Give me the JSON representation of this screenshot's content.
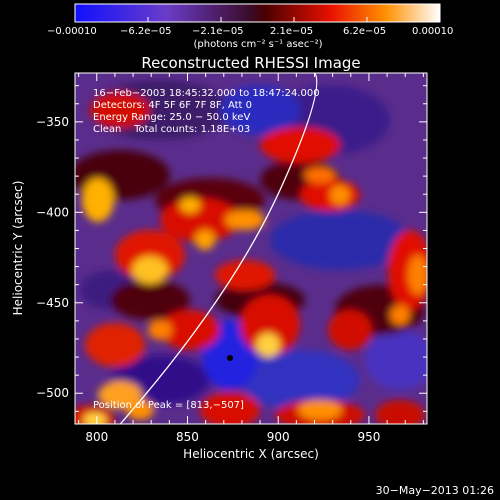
{
  "colorbar": {
    "tick_labels": [
      "−0.00010",
      "−6.2e−05",
      "−2.1e−05",
      "2.1e−05",
      "6.2e−05",
      "0.00010"
    ],
    "units_label": "(photons cm⁻² s⁻¹ asec⁻²)"
  },
  "image": {
    "title": "Reconstructed RHESSI Image",
    "info_lines": [
      "16−Feb−2003 18:45:32.000 to 18:47:24.000",
      "Detectors: 4F 5F 6F 7F 8F, Att 0",
      "Energy Range: 25.0 − 50.0 keV",
      "Clean    Total counts: 1.18E+03"
    ],
    "peak_label": "Position of Peak = [813,−507]",
    "x_axis": {
      "label": "Heliocentric X (arcsec)",
      "tick_labels": [
        "800",
        "850",
        "900",
        "950"
      ],
      "ticks": [
        800,
        850,
        900,
        950
      ],
      "range": [
        788,
        982
      ]
    },
    "y_axis": {
      "label": "Heliocentric Y (arcsec)",
      "tick_labels": [
        "−350",
        "−400",
        "−450",
        "−500"
      ],
      "ticks": [
        -350,
        -400,
        -450,
        -500
      ],
      "range": [
        -517,
        -323
      ]
    }
  },
  "footer": {
    "timestamp": "30−May−2013 01:26"
  }
}
